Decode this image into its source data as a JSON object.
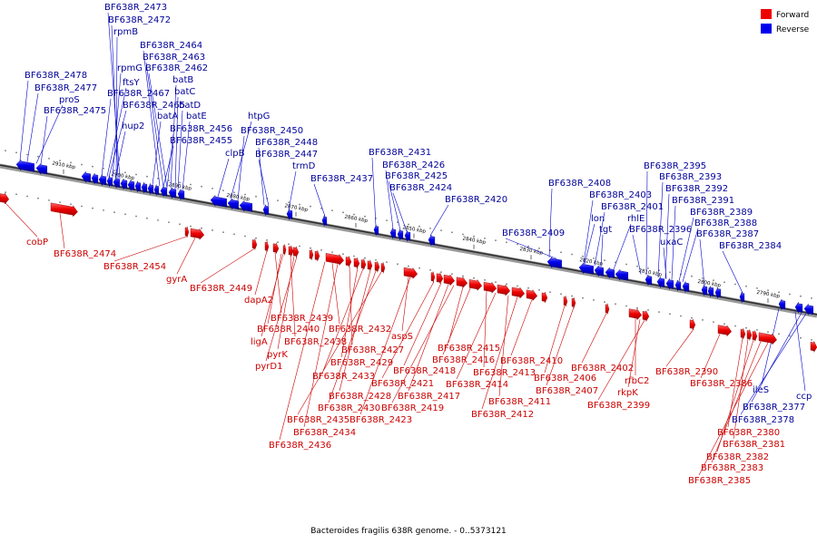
{
  "caption": "Bacteroides fragilis 638R genome. - 0..5373121",
  "legend": {
    "forward_label": "Forward",
    "reverse_label": "Reverse",
    "forward_color": "#ee0000",
    "reverse_color": "#0000ee"
  },
  "ticks": [
    "2910 kbp",
    "2900 kbp",
    "2890 kbp",
    "2880 kbp",
    "2870 kbp",
    "2860 kbp",
    "2850 kbp",
    "2840 kbp",
    "2830 kbp",
    "2820 kbp",
    "2810 kbp",
    "2800 kbp",
    "2790 kbp"
  ],
  "reverse_labels": [
    "BF638R_2473",
    "BF638R_2472",
    "rpmB",
    "BF638R_2464",
    "BF638R_2463",
    "rpmG",
    "BF638R_2462",
    "ftsY",
    "batB",
    "BF638R_2478",
    "BF638R_2477",
    "proS",
    "BF638R_2467",
    "batC",
    "BF638R_2465",
    "batD",
    "BF638R_2475",
    "hup2",
    "batA",
    "batE",
    "BF638R_2456",
    "BF638R_2455",
    "htpG",
    "BF638R_2450",
    "clpB",
    "BF638R_2448",
    "BF638R_2447",
    "trmD",
    "BF638R_2437",
    "BF638R_2431",
    "BF638R_2426",
    "BF638R_2425",
    "BF638R_2424",
    "BF638R_2420",
    "BF638R_2408",
    "BF638R_2403",
    "lon",
    "BF638R_2401",
    "tgt",
    "rhlE",
    "BF638R_2409",
    "BF638R_2395",
    "BF638R_2393",
    "BF638R_2392",
    "BF638R_2391",
    "BF638R_2389",
    "BF638R_2396",
    "BF638R_2388",
    "uxaC",
    "BF638R_2387",
    "BF638R_2384",
    "ileS",
    "ccp",
    "BF638R_2377",
    "BF638R_2378"
  ],
  "forward_labels": [
    "cobP",
    "BF638R_2474",
    "BF638R_2454",
    "gyrA",
    "BF638R_2449",
    "dapA2",
    "BF638R_2439",
    "BF638R_2440",
    "ligA",
    "BF638R_2438",
    "pyrK",
    "pyrD1",
    "BF638R_2432",
    "aspS",
    "BF638R_2427",
    "BF638R_2429",
    "BF638R_2433",
    "BF638R_2428",
    "BF638R_2430",
    "BF638R_2435",
    "BF638R_2434",
    "BF638R_2436",
    "BF638R_2421",
    "BF638R_2418",
    "BF638R_2417",
    "BF638R_2419",
    "BF638R_2423",
    "BF638R_2415",
    "BF638R_2416",
    "BF638R_2413",
    "BF638R_2414",
    "BF638R_2411",
    "BF638R_2412",
    "BF638R_2410",
    "BF638R_2406",
    "BF638R_2407",
    "BF638R_2402",
    "rfbC2",
    "rkpK",
    "BF638R_2399",
    "BF638R_2390",
    "BF638R_2386",
    "BF638R_2380",
    "BF638R_2381",
    "BF638R_2382",
    "BF638R_2383",
    "BF638R_2385"
  ]
}
